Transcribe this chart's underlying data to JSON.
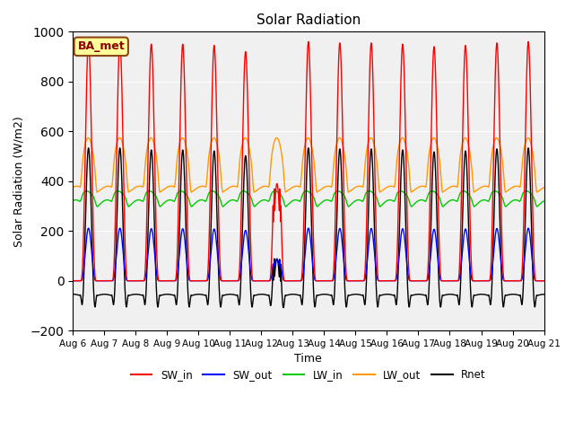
{
  "title": "Solar Radiation",
  "xlabel": "Time",
  "ylabel": "Solar Radiation (W/m2)",
  "ylim": [
    -200,
    1000
  ],
  "yticks": [
    -200,
    0,
    200,
    400,
    600,
    800,
    1000
  ],
  "n_days": 15,
  "points_per_day": 144,
  "station_label": "BA_met",
  "bg_color": "#f0f0f0",
  "lines": {
    "SW_in": {
      "color": "#ff0000",
      "lw": 1.0
    },
    "SW_out": {
      "color": "#0000ff",
      "lw": 1.0
    },
    "LW_in": {
      "color": "#00cc00",
      "lw": 1.0
    },
    "LW_out": {
      "color": "#ff9900",
      "lw": 1.0
    },
    "Rnet": {
      "color": "#000000",
      "lw": 1.0
    }
  },
  "legend_labels": [
    "SW_in",
    "SW_out",
    "LW_in",
    "LW_out",
    "Rnet"
  ],
  "legend_colors": [
    "#ff0000",
    "#0000ff",
    "#00cc00",
    "#ff9900",
    "#000000"
  ],
  "xtick_labels": [
    "Aug 6",
    "Aug 7",
    "Aug 8",
    "Aug 9",
    "Aug 10",
    "Aug 11",
    "Aug 12",
    "Aug 13",
    "Aug 14",
    "Aug 15",
    "Aug 16",
    "Aug 17",
    "Aug 18",
    "Aug 19",
    "Aug 20",
    "Aug 21"
  ]
}
